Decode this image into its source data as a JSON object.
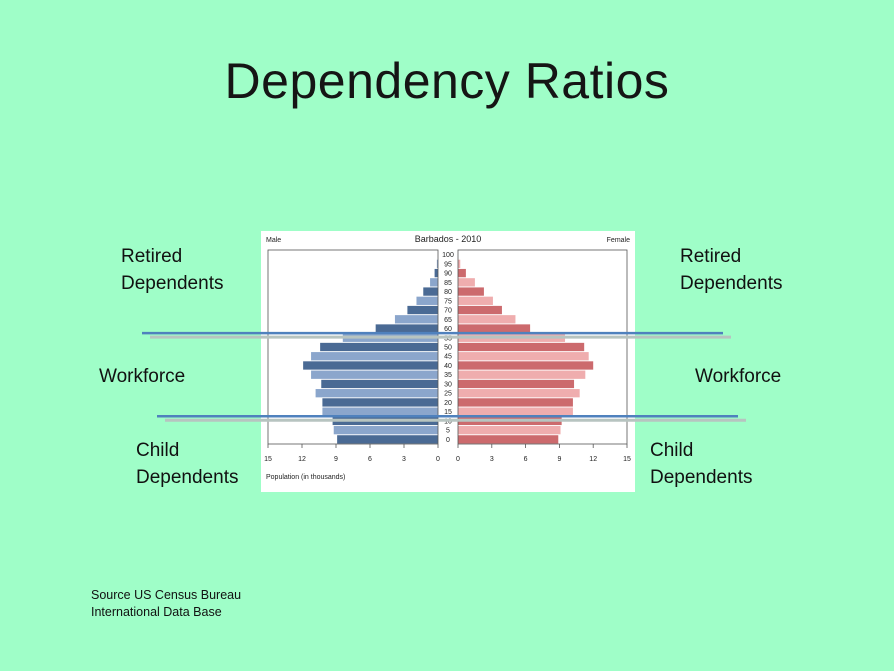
{
  "slide": {
    "title": "Dependency Ratios",
    "labels": {
      "retired_left": [
        "Retired",
        "Dependents"
      ],
      "retired_right": [
        "Retired",
        "Dependents"
      ],
      "workforce_left": "Workforce",
      "workforce_right": "Workforce",
      "child_left": [
        "Child",
        "Dependents"
      ],
      "child_right": [
        "Child",
        "Dependents"
      ]
    },
    "source_lines": [
      "Source US Census Bureau",
      "International Data Base"
    ]
  },
  "colors": {
    "background": "#9ffec8",
    "male_dark": "#4a6a94",
    "male_light": "#8ba6cc",
    "female_dark": "#cc6a6d",
    "female_light": "#efadae",
    "line_blue": "#4f81bd",
    "line_gray": "#b7c4c0"
  },
  "chart_data": {
    "type": "bar",
    "subtype": "population-pyramid",
    "title": "Barbados - 2010",
    "left_label": "Male",
    "right_label": "Female",
    "xlabel": "Population (in thousands)",
    "xlim": [
      0,
      15
    ],
    "xticks": [
      "15",
      "12",
      "9",
      "6",
      "3",
      "0"
    ],
    "xticks_right": [
      "0",
      "3",
      "6",
      "9",
      "12",
      "15"
    ],
    "age_groups": [
      "0",
      "5",
      "10",
      "15",
      "20",
      "25",
      "30",
      "35",
      "40",
      "45",
      "50",
      "55",
      "60",
      "65",
      "70",
      "75",
      "80",
      "85",
      "90",
      "95",
      "100"
    ],
    "series": [
      {
        "name": "Male",
        "values": [
          8.9,
          9.2,
          9.3,
          10.2,
          10.2,
          10.8,
          10.3,
          11.2,
          11.9,
          11.2,
          10.4,
          8.4,
          5.5,
          3.8,
          2.7,
          1.9,
          1.3,
          0.7,
          0.3,
          0.1,
          0
        ]
      },
      {
        "name": "Female",
        "values": [
          8.9,
          9.1,
          9.2,
          10.2,
          10.2,
          10.8,
          10.3,
          11.3,
          12.0,
          11.6,
          11.2,
          9.5,
          6.4,
          5.1,
          3.9,
          3.1,
          2.3,
          1.5,
          0.7,
          0.2,
          0
        ]
      }
    ],
    "dividers": [
      {
        "name": "retirement threshold",
        "between_ages": [
          "55",
          "60"
        ]
      },
      {
        "name": "working age threshold",
        "between_ages": [
          "10",
          "15"
        ]
      }
    ]
  }
}
